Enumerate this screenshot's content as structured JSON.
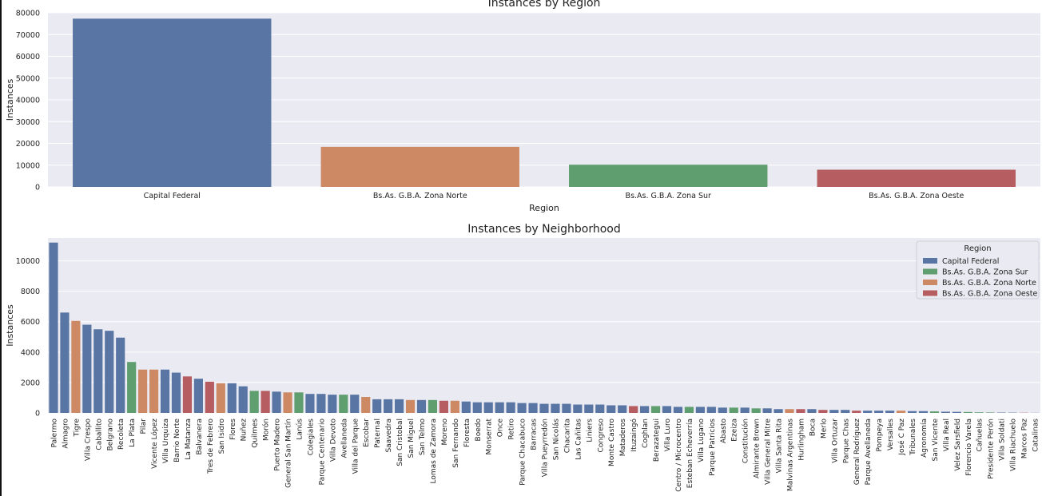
{
  "colors": {
    "Capital Federal": "#5875a4",
    "Bs.As. G.B.A. Zona Norte": "#cc8963",
    "Bs.As. G.B.A. Zona Sur": "#5f9e6e",
    "Bs.As. G.B.A. Zona Oeste": "#b55d60",
    "plot_background": "#eaeaf2",
    "grid": "#ffffff"
  },
  "chart_data": [
    {
      "type": "bar",
      "title": "Instances by Region",
      "xlabel": "Region",
      "ylabel": "Instances",
      "ylim": [
        0,
        80000
      ],
      "yticks": [
        0,
        10000,
        20000,
        30000,
        40000,
        50000,
        60000,
        70000,
        80000
      ],
      "grid": true,
      "categories": [
        "Capital Federal",
        "Bs.As. G.B.A. Zona Norte",
        "Bs.As. G.B.A. Zona Sur",
        "Bs.As. G.B.A. Zona Oeste"
      ],
      "values": [
        77300,
        18400,
        10200,
        7900
      ]
    },
    {
      "type": "bar",
      "title": "Instances by Neighborhood",
      "xlabel": "Neighborhood",
      "ylabel": "Instances",
      "ylim": [
        0,
        11500
      ],
      "yticks": [
        0,
        2000,
        4000,
        6000,
        8000,
        10000
      ],
      "grid": true,
      "legend": {
        "title": "Region",
        "position": "top-right",
        "entries": [
          "Capital Federal",
          "Bs.As. G.B.A. Zona Sur",
          "Bs.As. G.B.A. Zona Norte",
          "Bs.As. G.B.A. Zona Oeste"
        ]
      },
      "bars": [
        {
          "name": "Palermo",
          "value": 11200,
          "region": "Capital Federal"
        },
        {
          "name": "Almagro",
          "value": 6600,
          "region": "Capital Federal"
        },
        {
          "name": "Tigre",
          "value": 6050,
          "region": "Bs.As. G.B.A. Zona Norte"
        },
        {
          "name": "Villa Crespo",
          "value": 5800,
          "region": "Capital Federal"
        },
        {
          "name": "Caballito",
          "value": 5500,
          "region": "Capital Federal"
        },
        {
          "name": "Belgrano",
          "value": 5400,
          "region": "Capital Federal"
        },
        {
          "name": "Recoleta",
          "value": 4950,
          "region": "Capital Federal"
        },
        {
          "name": "La Plata",
          "value": 3350,
          "region": "Bs.As. G.B.A. Zona Sur"
        },
        {
          "name": "Pilar",
          "value": 2850,
          "region": "Bs.As. G.B.A. Zona Norte"
        },
        {
          "name": "Vicente López",
          "value": 2850,
          "region": "Bs.As. G.B.A. Zona Norte"
        },
        {
          "name": "Villa Urquiza",
          "value": 2850,
          "region": "Capital Federal"
        },
        {
          "name": "Barrio Norte",
          "value": 2650,
          "region": "Capital Federal"
        },
        {
          "name": "La Matanza",
          "value": 2400,
          "region": "Bs.As. G.B.A. Zona Oeste"
        },
        {
          "name": "Balvanera",
          "value": 2250,
          "region": "Capital Federal"
        },
        {
          "name": "Tres de Febrero",
          "value": 2050,
          "region": "Bs.As. G.B.A. Zona Oeste"
        },
        {
          "name": "San Isidro",
          "value": 1950,
          "region": "Bs.As. G.B.A. Zona Norte"
        },
        {
          "name": "Flores",
          "value": 1950,
          "region": "Capital Federal"
        },
        {
          "name": "Nuñez",
          "value": 1750,
          "region": "Capital Federal"
        },
        {
          "name": "Quilmes",
          "value": 1450,
          "region": "Bs.As. G.B.A. Zona Sur"
        },
        {
          "name": "Morón",
          "value": 1450,
          "region": "Bs.As. G.B.A. Zona Oeste"
        },
        {
          "name": "Puerto Madero",
          "value": 1400,
          "region": "Capital Federal"
        },
        {
          "name": "General San Martín",
          "value": 1350,
          "region": "Bs.As. G.B.A. Zona Norte"
        },
        {
          "name": "Lanús",
          "value": 1350,
          "region": "Bs.As. G.B.A. Zona Sur"
        },
        {
          "name": "Colegiales",
          "value": 1250,
          "region": "Capital Federal"
        },
        {
          "name": "Parque Centenario",
          "value": 1250,
          "region": "Capital Federal"
        },
        {
          "name": "Villa Devoto",
          "value": 1200,
          "region": "Capital Federal"
        },
        {
          "name": "Avellaneda",
          "value": 1200,
          "region": "Bs.As. G.B.A. Zona Sur"
        },
        {
          "name": "Villa del Parque",
          "value": 1200,
          "region": "Capital Federal"
        },
        {
          "name": "Escobar",
          "value": 1050,
          "region": "Bs.As. G.B.A. Zona Norte"
        },
        {
          "name": "Paternal",
          "value": 900,
          "region": "Capital Federal"
        },
        {
          "name": "Saavedra",
          "value": 900,
          "region": "Capital Federal"
        },
        {
          "name": "San Cristobal",
          "value": 900,
          "region": "Capital Federal"
        },
        {
          "name": "San Miguel",
          "value": 850,
          "region": "Bs.As. G.B.A. Zona Norte"
        },
        {
          "name": "San Telmo",
          "value": 850,
          "region": "Capital Federal"
        },
        {
          "name": "Lomas de Zamora",
          "value": 850,
          "region": "Bs.As. G.B.A. Zona Sur"
        },
        {
          "name": "Moreno",
          "value": 800,
          "region": "Bs.As. G.B.A. Zona Oeste"
        },
        {
          "name": "San Fernando",
          "value": 800,
          "region": "Bs.As. G.B.A. Zona Norte"
        },
        {
          "name": "Floresta",
          "value": 750,
          "region": "Capital Federal"
        },
        {
          "name": "Boedo",
          "value": 700,
          "region": "Capital Federal"
        },
        {
          "name": "Monserrat",
          "value": 700,
          "region": "Capital Federal"
        },
        {
          "name": "Once",
          "value": 700,
          "region": "Capital Federal"
        },
        {
          "name": "Retiro",
          "value": 700,
          "region": "Capital Federal"
        },
        {
          "name": "Parque Chacabuco",
          "value": 650,
          "region": "Capital Federal"
        },
        {
          "name": "Barracas",
          "value": 650,
          "region": "Capital Federal"
        },
        {
          "name": "Villa Pueyrredón",
          "value": 600,
          "region": "Capital Federal"
        },
        {
          "name": "San Nicolás",
          "value": 600,
          "region": "Capital Federal"
        },
        {
          "name": "Chacarita",
          "value": 600,
          "region": "Capital Federal"
        },
        {
          "name": "Las Cañitas",
          "value": 550,
          "region": "Capital Federal"
        },
        {
          "name": "Liniers",
          "value": 550,
          "region": "Capital Federal"
        },
        {
          "name": "Congreso",
          "value": 550,
          "region": "Capital Federal"
        },
        {
          "name": "Monte Castro",
          "value": 500,
          "region": "Capital Federal"
        },
        {
          "name": "Mataderos",
          "value": 500,
          "region": "Capital Federal"
        },
        {
          "name": "Ituzaingó",
          "value": 450,
          "region": "Bs.As. G.B.A. Zona Oeste"
        },
        {
          "name": "Coghlan",
          "value": 450,
          "region": "Capital Federal"
        },
        {
          "name": "Berazategui",
          "value": 450,
          "region": "Bs.As. G.B.A. Zona Sur"
        },
        {
          "name": "Villa Luro",
          "value": 450,
          "region": "Capital Federal"
        },
        {
          "name": "Centro / Microcentro",
          "value": 400,
          "region": "Capital Federal"
        },
        {
          "name": "Esteban Echeverría",
          "value": 400,
          "region": "Bs.As. G.B.A. Zona Sur"
        },
        {
          "name": "Villa Lugano",
          "value": 400,
          "region": "Capital Federal"
        },
        {
          "name": "Parque Patricios",
          "value": 400,
          "region": "Capital Federal"
        },
        {
          "name": "Abasto",
          "value": 350,
          "region": "Capital Federal"
        },
        {
          "name": "Ezeiza",
          "value": 350,
          "region": "Bs.As. G.B.A. Zona Sur"
        },
        {
          "name": "Constitución",
          "value": 350,
          "region": "Capital Federal"
        },
        {
          "name": "Almirante Brown",
          "value": 300,
          "region": "Bs.As. G.B.A. Zona Sur"
        },
        {
          "name": "Villa General Mitre",
          "value": 300,
          "region": "Capital Federal"
        },
        {
          "name": "Villa Santa Rita",
          "value": 250,
          "region": "Capital Federal"
        },
        {
          "name": "Malvinas Argentinas",
          "value": 250,
          "region": "Bs.As. G.B.A. Zona Norte"
        },
        {
          "name": "Hurlingham",
          "value": 250,
          "region": "Bs.As. G.B.A. Zona Oeste"
        },
        {
          "name": "Boca",
          "value": 250,
          "region": "Capital Federal"
        },
        {
          "name": "Merlo",
          "value": 200,
          "region": "Bs.As. G.B.A. Zona Oeste"
        },
        {
          "name": "Villa Ortuzar",
          "value": 200,
          "region": "Capital Federal"
        },
        {
          "name": "Parque Chas",
          "value": 200,
          "region": "Capital Federal"
        },
        {
          "name": "General Rodríguez",
          "value": 150,
          "region": "Bs.As. G.B.A. Zona Oeste"
        },
        {
          "name": "Parque Avellaneda",
          "value": 150,
          "region": "Capital Federal"
        },
        {
          "name": "Pompeya",
          "value": 150,
          "region": "Capital Federal"
        },
        {
          "name": "Versalles",
          "value": 150,
          "region": "Capital Federal"
        },
        {
          "name": "José C Paz",
          "value": 150,
          "region": "Bs.As. G.B.A. Zona Norte"
        },
        {
          "name": "Tribunales",
          "value": 120,
          "region": "Capital Federal"
        },
        {
          "name": "Agronomía",
          "value": 120,
          "region": "Capital Federal"
        },
        {
          "name": "San Vicente",
          "value": 100,
          "region": "Bs.As. G.B.A. Zona Sur"
        },
        {
          "name": "Villa Real",
          "value": 80,
          "region": "Capital Federal"
        },
        {
          "name": "Velez Sarsfield",
          "value": 70,
          "region": "Capital Federal"
        },
        {
          "name": "Florencio Varela",
          "value": 60,
          "region": "Bs.As. G.B.A. Zona Sur"
        },
        {
          "name": "Cañuelas",
          "value": 40,
          "region": "Bs.As. G.B.A. Zona Sur"
        },
        {
          "name": "Presidente Perón",
          "value": 30,
          "region": "Bs.As. G.B.A. Zona Sur"
        },
        {
          "name": "Villa Soldati",
          "value": 25,
          "region": "Capital Federal"
        },
        {
          "name": "Villa Riachuelo",
          "value": 20,
          "region": "Capital Federal"
        },
        {
          "name": "Marcos Paz",
          "value": 15,
          "region": "Bs.As. G.B.A. Zona Oeste"
        },
        {
          "name": "Catalinas",
          "value": 10,
          "region": "Capital Federal"
        }
      ]
    }
  ]
}
